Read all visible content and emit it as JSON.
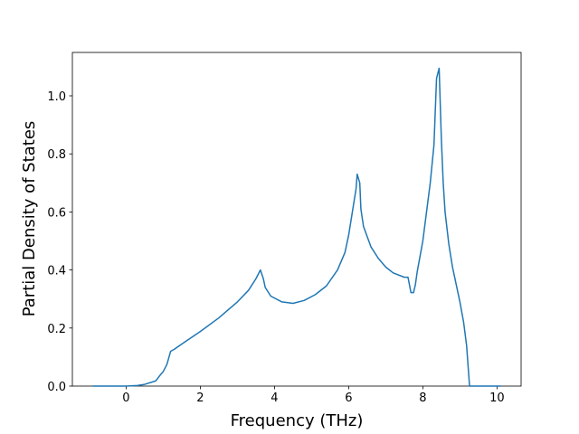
{
  "chart_data": {
    "type": "line",
    "x_label": "Frequency (THz)",
    "y_label": "Partial Density of States",
    "x": [
      -0.9,
      0,
      0.3,
      0.5,
      0.8,
      0.9,
      1.0,
      1.1,
      1.2,
      1.3,
      1.5,
      2.0,
      2.5,
      3.0,
      3.3,
      3.5,
      3.62,
      3.7,
      3.75,
      3.9,
      4.2,
      4.5,
      4.8,
      5.1,
      5.4,
      5.7,
      5.9,
      6.0,
      6.1,
      6.2,
      6.23,
      6.3,
      6.33,
      6.4,
      6.6,
      6.8,
      7.0,
      7.2,
      7.5,
      7.6,
      7.68,
      7.75,
      7.8,
      7.85,
      8.0,
      8.1,
      8.2,
      8.3,
      8.37,
      8.44,
      8.5,
      8.55,
      8.6,
      8.7,
      8.8,
      9.0,
      9.1,
      9.18,
      9.26,
      10.1
    ],
    "series": [
      {
        "color": "#1f77b4",
        "values": [
          0,
          0,
          0.002,
          0.006,
          0.018,
          0.035,
          0.05,
          0.075,
          0.12,
          0.127,
          0.145,
          0.188,
          0.235,
          0.29,
          0.33,
          0.37,
          0.4,
          0.37,
          0.34,
          0.31,
          0.29,
          0.285,
          0.295,
          0.315,
          0.345,
          0.4,
          0.46,
          0.52,
          0.6,
          0.68,
          0.73,
          0.7,
          0.61,
          0.55,
          0.48,
          0.44,
          0.41,
          0.39,
          0.375,
          0.375,
          0.322,
          0.322,
          0.35,
          0.395,
          0.5,
          0.6,
          0.7,
          0.83,
          1.06,
          1.095,
          0.85,
          0.7,
          0.6,
          0.49,
          0.41,
          0.29,
          0.22,
          0.14,
          0,
          0
        ]
      }
    ],
    "xlim": [
      -1.45,
      10.65
    ],
    "xticks": [
      0,
      2,
      4,
      6,
      8,
      10
    ],
    "ylim": [
      0,
      1.1495
    ],
    "yticks": [
      {
        "value": 0,
        "label": "0.0"
      },
      {
        "value": 0.2,
        "label": "0.2"
      },
      {
        "value": 0.4,
        "label": "0.4"
      },
      {
        "value": 0.6,
        "label": "0.6"
      },
      {
        "value": 0.8,
        "label": "0.8"
      },
      {
        "value": 1.0,
        "label": "1.0"
      }
    ]
  }
}
